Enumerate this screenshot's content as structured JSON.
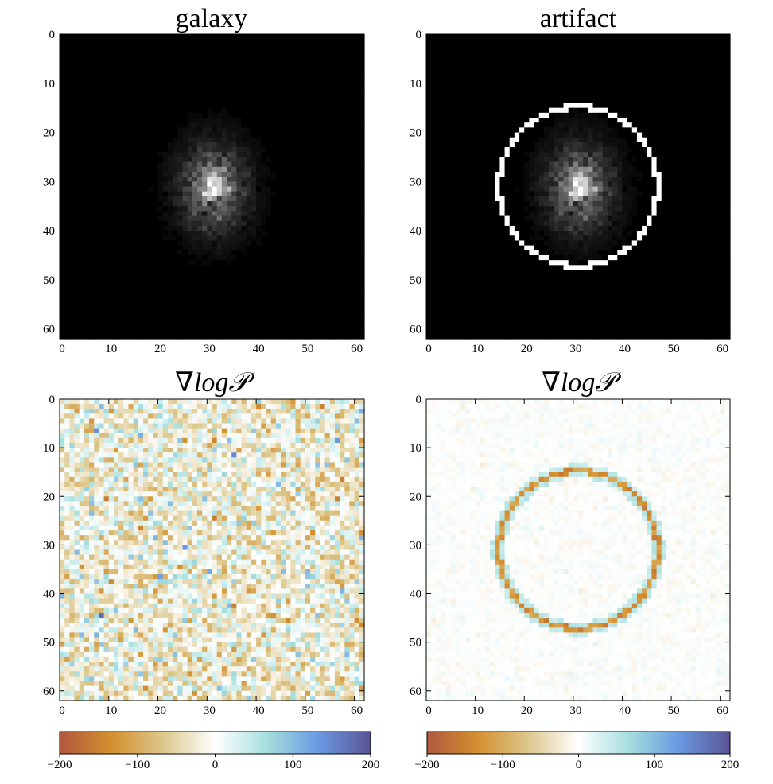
{
  "chart_data": [
    {
      "type": "heatmap",
      "title": "galaxy",
      "colormap": "gray",
      "image_size": [
        62,
        62
      ],
      "xticks": [
        0,
        10,
        20,
        30,
        40,
        50,
        60
      ],
      "yticks": [
        0,
        10,
        20,
        30,
        40,
        50,
        60
      ],
      "xlim": [
        0,
        62
      ],
      "ylim": [
        62,
        0
      ],
      "content": "faint galaxy centered near (31, 31)"
    },
    {
      "type": "heatmap",
      "title": "artifact",
      "colormap": "gray",
      "image_size": [
        62,
        62
      ],
      "xticks": [
        0,
        10,
        20,
        30,
        40,
        50,
        60
      ],
      "yticks": [
        0,
        10,
        20,
        30,
        40,
        50,
        60
      ],
      "xlim": [
        0,
        62
      ],
      "ylim": [
        62,
        0
      ],
      "content": "same galaxy plus a bright circular ring artifact of radius ~16 px centered at (31, 31)"
    },
    {
      "type": "heatmap",
      "title": "∇log𝒫",
      "colormap": "diverging brown-white-blue",
      "image_size": [
        62,
        62
      ],
      "xticks": [
        0,
        10,
        20,
        30,
        40,
        50,
        60
      ],
      "yticks": [
        0,
        10,
        20,
        30,
        40,
        50,
        60
      ],
      "xlim": [
        0,
        62
      ],
      "ylim": [
        62,
        0
      ],
      "colorbar": {
        "range": [
          -200,
          200
        ],
        "ticks": [
          -200,
          -100,
          0,
          100,
          200
        ]
      },
      "content": "noise-like gradient values, mostly within ±120"
    },
    {
      "type": "heatmap",
      "title": "∇log𝒫",
      "colormap": "diverging brown-white-blue",
      "image_size": [
        62,
        62
      ],
      "xticks": [
        0,
        10,
        20,
        30,
        40,
        50,
        60
      ],
      "yticks": [
        0,
        10,
        20,
        30,
        40,
        50,
        60
      ],
      "xlim": [
        0,
        62
      ],
      "ylim": [
        62,
        0
      ],
      "colorbar": {
        "range": [
          -200,
          200
        ],
        "ticks": [
          -200,
          -100,
          0,
          100,
          200
        ]
      },
      "content": "near-zero background with a strong negative (brown) ring at the artifact location"
    }
  ],
  "colorbar_ticks": [
    "−200",
    "−100",
    "0",
    "100",
    "200"
  ],
  "colormap_stops": [
    "#b0573e",
    "#d4902e",
    "#dcc78c",
    "#ffffff",
    "#a6dede",
    "#6a98e2",
    "#5a5494"
  ]
}
